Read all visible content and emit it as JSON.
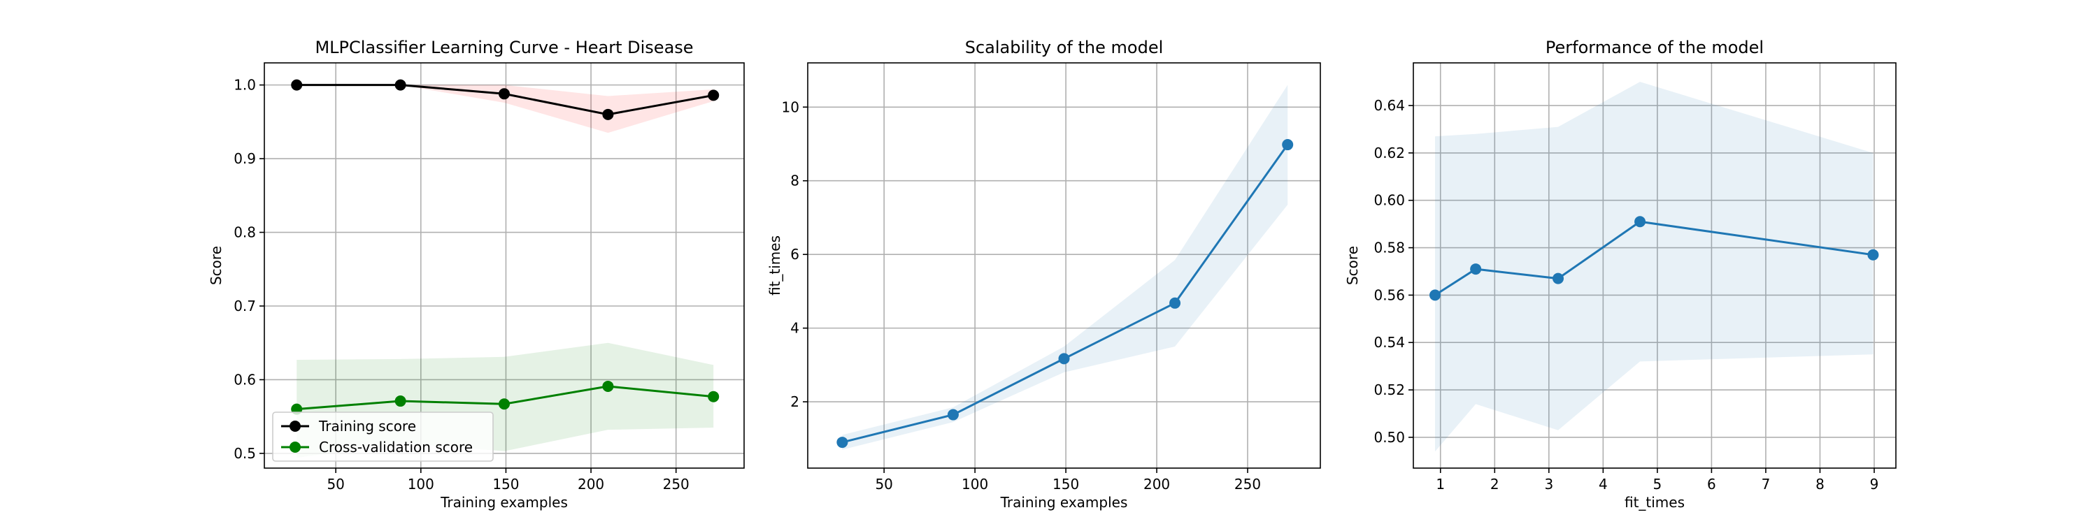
{
  "chart_data": [
    {
      "type": "line",
      "title": "MLPClassifier Learning Curve - Heart Disease",
      "xlabel": "Training examples",
      "ylabel": "Score",
      "xlim": [
        8,
        290
      ],
      "ylim": [
        0.48,
        1.03
      ],
      "xticks": [
        50,
        100,
        150,
        200,
        250
      ],
      "yticks": [
        0.5,
        0.6,
        0.7,
        0.8,
        0.9,
        1.0
      ],
      "tick_format": 1,
      "grid": true,
      "legend": "lower left",
      "x": [
        27,
        88,
        149,
        210,
        272
      ],
      "series": [
        {
          "name": "Training score",
          "values": [
            1.0,
            1.0,
            0.988,
            0.96,
            0.986
          ],
          "band_low": [
            1.0,
            1.0,
            0.976,
            0.935,
            0.978
          ],
          "band_high": [
            1.0,
            1.0,
            1.0,
            0.985,
            0.994
          ],
          "color": "#000000",
          "band_color": "#ff0000"
        },
        {
          "name": "Cross-validation score",
          "values": [
            0.56,
            0.571,
            0.567,
            0.591,
            0.577
          ],
          "band_low": [
            0.494,
            0.514,
            0.503,
            0.532,
            0.535
          ],
          "band_high": [
            0.627,
            0.628,
            0.631,
            0.65,
            0.62
          ],
          "color": "#008000",
          "band_color": "#008000"
        }
      ]
    },
    {
      "type": "line",
      "title": "Scalability of the model",
      "xlabel": "Training examples",
      "ylabel": "fit_times",
      "xlim": [
        8,
        290
      ],
      "ylim": [
        0.2,
        11.2
      ],
      "xticks": [
        50,
        100,
        150,
        200,
        250
      ],
      "yticks": [
        2,
        4,
        6,
        8,
        10
      ],
      "tick_format": 0,
      "grid": true,
      "x": [
        27,
        88,
        149,
        210,
        272
      ],
      "series": [
        {
          "name": "",
          "values": [
            0.9,
            1.65,
            3.17,
            4.68,
            8.98
          ],
          "band_low": [
            0.7,
            1.45,
            2.8,
            3.5,
            7.35
          ],
          "band_high": [
            1.1,
            1.85,
            3.5,
            5.85,
            10.6
          ],
          "color": "#1f77b4",
          "band_color": "#1f77b4"
        }
      ]
    },
    {
      "type": "line",
      "title": "Performance of the model",
      "xlabel": "fit_times",
      "ylabel": "Score",
      "xlim": [
        0.5,
        9.4
      ],
      "ylim": [
        0.487,
        0.658
      ],
      "xticks": [
        1,
        2,
        3,
        4,
        5,
        6,
        7,
        8,
        9
      ],
      "yticks": [
        0.5,
        0.52,
        0.54,
        0.56,
        0.58,
        0.6,
        0.62,
        0.64
      ],
      "tick_format": 2,
      "grid": true,
      "x": [
        0.9,
        1.65,
        3.17,
        4.68,
        8.98
      ],
      "series": [
        {
          "name": "",
          "values": [
            0.56,
            0.571,
            0.567,
            0.591,
            0.577
          ],
          "band_low": [
            0.494,
            0.514,
            0.503,
            0.532,
            0.535
          ],
          "band_high": [
            0.627,
            0.628,
            0.631,
            0.65,
            0.62
          ],
          "color": "#1f77b4",
          "band_color": "#1f77b4"
        }
      ]
    }
  ]
}
